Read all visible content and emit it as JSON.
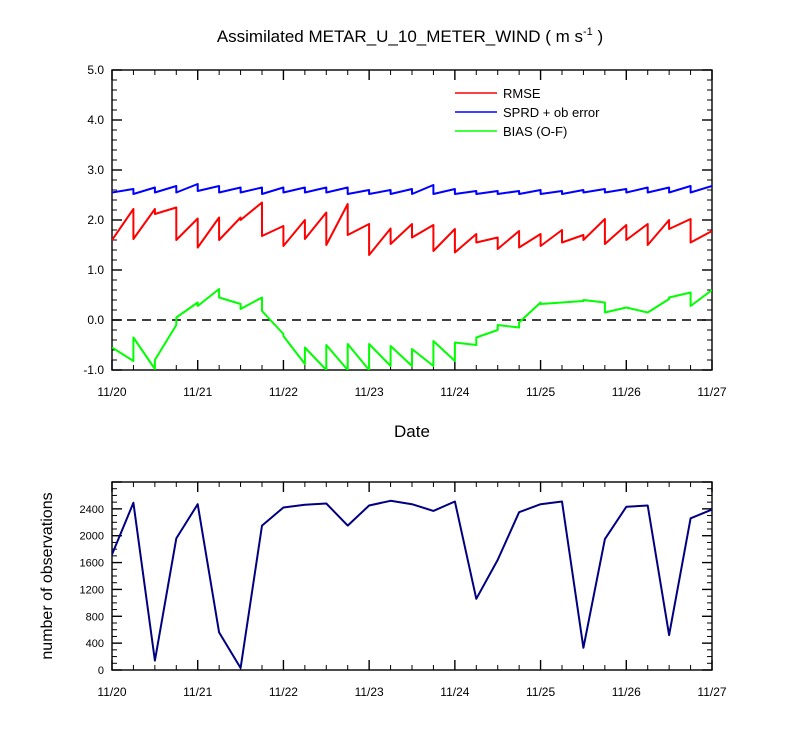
{
  "chart_data": [
    {
      "type": "line",
      "title": "Assimilated METAR_U_10_METER_WIND ( m s",
      "title_unit_sup": "-1",
      "title_close": " )",
      "xlabel": "Date",
      "ylabel": "",
      "xlim": [
        0,
        7
      ],
      "ylim": [
        -1.0,
        5.0
      ],
      "x_tick_labels": [
        "11/20",
        "11/21",
        "11/22",
        "11/23",
        "11/24",
        "11/25",
        "11/26",
        "11/27"
      ],
      "y_tick_labels": [
        "-1.0",
        "0.0",
        "1.0",
        "2.0",
        "3.0",
        "4.0",
        "5.0"
      ],
      "reference_line_y": 0,
      "series": [
        {
          "name": "RMSE",
          "color": "#ff0000",
          "points": [
            [
              0,
              1.6
            ],
            [
              0.25,
              2.22
            ],
            [
              0.25,
              1.62
            ],
            [
              0.5,
              2.22
            ],
            [
              0.5,
              2.12
            ],
            [
              0.75,
              2.25
            ],
            [
              0.75,
              1.6
            ],
            [
              1.0,
              2.03
            ],
            [
              1.0,
              1.45
            ],
            [
              1.25,
              2.05
            ],
            [
              1.25,
              1.6
            ],
            [
              1.5,
              2.05
            ],
            [
              1.5,
              2.0
            ],
            [
              1.75,
              2.35
            ],
            [
              1.75,
              1.68
            ],
            [
              2.0,
              1.88
            ],
            [
              2.0,
              1.48
            ],
            [
              2.25,
              2.0
            ],
            [
              2.25,
              1.62
            ],
            [
              2.5,
              2.15
            ],
            [
              2.5,
              1.5
            ],
            [
              2.75,
              2.32
            ],
            [
              2.75,
              1.7
            ],
            [
              3.0,
              1.92
            ],
            [
              3.0,
              1.3
            ],
            [
              3.25,
              1.83
            ],
            [
              3.25,
              1.52
            ],
            [
              3.5,
              1.92
            ],
            [
              3.5,
              1.65
            ],
            [
              3.75,
              1.9
            ],
            [
              3.75,
              1.38
            ],
            [
              4.0,
              1.82
            ],
            [
              4.0,
              1.35
            ],
            [
              4.25,
              1.72
            ],
            [
              4.25,
              1.55
            ],
            [
              4.5,
              1.65
            ],
            [
              4.5,
              1.42
            ],
            [
              4.75,
              1.78
            ],
            [
              4.75,
              1.45
            ],
            [
              5.0,
              1.72
            ],
            [
              5.0,
              1.48
            ],
            [
              5.25,
              1.8
            ],
            [
              5.25,
              1.55
            ],
            [
              5.5,
              1.7
            ],
            [
              5.5,
              1.6
            ],
            [
              5.75,
              2.02
            ],
            [
              5.75,
              1.52
            ],
            [
              6.0,
              1.9
            ],
            [
              6.0,
              1.6
            ],
            [
              6.25,
              1.92
            ],
            [
              6.25,
              1.5
            ],
            [
              6.5,
              2.0
            ],
            [
              6.5,
              1.82
            ],
            [
              6.75,
              2.02
            ],
            [
              6.75,
              1.55
            ],
            [
              7.0,
              1.78
            ]
          ]
        },
        {
          "name": "SPRD + ob error",
          "color": "#0000ff",
          "points": [
            [
              0,
              2.55
            ],
            [
              0.25,
              2.62
            ],
            [
              0.25,
              2.52
            ],
            [
              0.5,
              2.65
            ],
            [
              0.5,
              2.55
            ],
            [
              0.75,
              2.68
            ],
            [
              0.75,
              2.55
            ],
            [
              1.0,
              2.72
            ],
            [
              1.0,
              2.58
            ],
            [
              1.25,
              2.68
            ],
            [
              1.25,
              2.55
            ],
            [
              1.5,
              2.65
            ],
            [
              1.5,
              2.55
            ],
            [
              1.75,
              2.65
            ],
            [
              1.75,
              2.52
            ],
            [
              2.0,
              2.65
            ],
            [
              2.0,
              2.55
            ],
            [
              2.25,
              2.65
            ],
            [
              2.25,
              2.55
            ],
            [
              2.5,
              2.65
            ],
            [
              2.5,
              2.55
            ],
            [
              2.75,
              2.65
            ],
            [
              2.75,
              2.52
            ],
            [
              3.0,
              2.6
            ],
            [
              3.0,
              2.52
            ],
            [
              3.25,
              2.6
            ],
            [
              3.25,
              2.52
            ],
            [
              3.5,
              2.62
            ],
            [
              3.5,
              2.52
            ],
            [
              3.75,
              2.7
            ],
            [
              3.75,
              2.52
            ],
            [
              4.0,
              2.62
            ],
            [
              4.0,
              2.52
            ],
            [
              4.25,
              2.58
            ],
            [
              4.25,
              2.52
            ],
            [
              4.5,
              2.58
            ],
            [
              4.5,
              2.52
            ],
            [
              4.75,
              2.58
            ],
            [
              4.75,
              2.52
            ],
            [
              5.0,
              2.6
            ],
            [
              5.0,
              2.52
            ],
            [
              5.25,
              2.58
            ],
            [
              5.25,
              2.52
            ],
            [
              5.5,
              2.6
            ],
            [
              5.5,
              2.55
            ],
            [
              5.75,
              2.62
            ],
            [
              5.75,
              2.55
            ],
            [
              6.0,
              2.62
            ],
            [
              6.0,
              2.55
            ],
            [
              6.25,
              2.65
            ],
            [
              6.25,
              2.55
            ],
            [
              6.5,
              2.65
            ],
            [
              6.5,
              2.55
            ],
            [
              6.75,
              2.68
            ],
            [
              6.75,
              2.55
            ],
            [
              7.0,
              2.68
            ]
          ]
        },
        {
          "name": "BIAS (O-F)",
          "color": "#00ff00",
          "points": [
            [
              0,
              -0.55
            ],
            [
              0.25,
              -0.82
            ],
            [
              0.25,
              -0.35
            ],
            [
              0.5,
              -0.98
            ],
            [
              0.5,
              -0.8
            ],
            [
              0.75,
              -0.1
            ],
            [
              0.75,
              0.05
            ],
            [
              1.0,
              0.35
            ],
            [
              1.0,
              0.28
            ],
            [
              1.25,
              0.62
            ],
            [
              1.25,
              0.45
            ],
            [
              1.5,
              0.32
            ],
            [
              1.5,
              0.22
            ],
            [
              1.75,
              0.45
            ],
            [
              1.75,
              0.18
            ],
            [
              2.0,
              -0.28
            ],
            [
              2.0,
              -0.32
            ],
            [
              2.25,
              -0.88
            ],
            [
              2.25,
              -0.55
            ],
            [
              2.5,
              -1.0
            ],
            [
              2.5,
              -0.5
            ],
            [
              2.75,
              -1.0
            ],
            [
              2.75,
              -0.48
            ],
            [
              3.0,
              -1.0
            ],
            [
              3.0,
              -0.48
            ],
            [
              3.25,
              -0.92
            ],
            [
              3.25,
              -0.52
            ],
            [
              3.5,
              -0.92
            ],
            [
              3.5,
              -0.58
            ],
            [
              3.75,
              -0.92
            ],
            [
              3.75,
              -0.42
            ],
            [
              4.0,
              -0.82
            ],
            [
              4.0,
              -0.45
            ],
            [
              4.25,
              -0.5
            ],
            [
              4.25,
              -0.35
            ],
            [
              4.5,
              -0.2
            ],
            [
              4.5,
              -0.1
            ],
            [
              4.75,
              -0.15
            ],
            [
              4.75,
              -0.05
            ],
            [
              5.0,
              0.35
            ],
            [
              5.0,
              0.32
            ],
            [
              5.5,
              0.38
            ],
            [
              5.5,
              0.4
            ],
            [
              5.75,
              0.35
            ],
            [
              5.75,
              0.15
            ],
            [
              6.0,
              0.25
            ],
            [
              6.25,
              0.15
            ],
            [
              6.5,
              0.42
            ],
            [
              6.5,
              0.45
            ],
            [
              6.75,
              0.55
            ],
            [
              6.75,
              0.28
            ],
            [
              7.0,
              0.6
            ]
          ]
        }
      ]
    },
    {
      "type": "line",
      "title": "",
      "xlabel": "",
      "ylabel": "number of observations",
      "xlim": [
        0,
        7
      ],
      "ylim": [
        0,
        2800
      ],
      "x_tick_labels": [
        "11/20",
        "11/21",
        "11/22",
        "11/23",
        "11/24",
        "11/25",
        "11/26",
        "11/27"
      ],
      "y_tick_labels": [
        "0",
        "400",
        "800",
        "1200",
        "1600",
        "2000",
        "2400"
      ],
      "series": [
        {
          "name": "number of observations",
          "color": "#000080",
          "points": [
            [
              0,
              1720
            ],
            [
              0.25,
              2490
            ],
            [
              0.5,
              140
            ],
            [
              0.75,
              1960
            ],
            [
              1.0,
              2470
            ],
            [
              1.25,
              560
            ],
            [
              1.5,
              30
            ],
            [
              1.75,
              2150
            ],
            [
              2.0,
              2420
            ],
            [
              2.25,
              2460
            ],
            [
              2.5,
              2480
            ],
            [
              2.75,
              2150
            ],
            [
              3.0,
              2450
            ],
            [
              3.25,
              2520
            ],
            [
              3.5,
              2470
            ],
            [
              3.75,
              2370
            ],
            [
              4.0,
              2510
            ],
            [
              4.25,
              1060
            ],
            [
              4.5,
              1640
            ],
            [
              4.75,
              2350
            ],
            [
              5.0,
              2470
            ],
            [
              5.25,
              2510
            ],
            [
              5.5,
              330
            ],
            [
              5.75,
              1950
            ],
            [
              6.0,
              2430
            ],
            [
              6.25,
              2450
            ],
            [
              6.5,
              520
            ],
            [
              6.75,
              2260
            ],
            [
              7.0,
              2390
            ]
          ]
        }
      ]
    }
  ]
}
